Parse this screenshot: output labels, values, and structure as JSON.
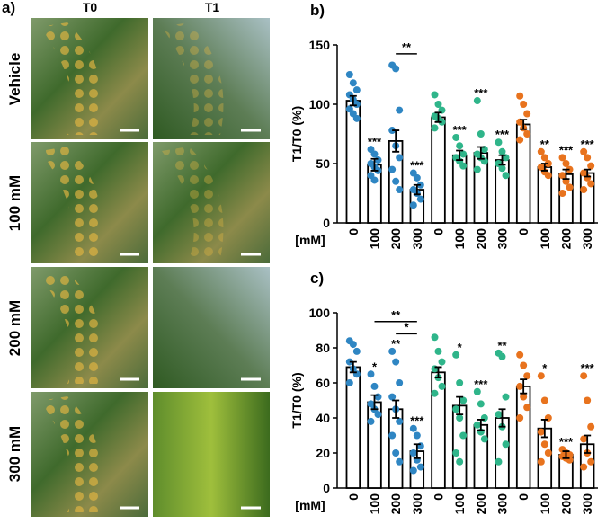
{
  "panel_a": {
    "label": "a)",
    "columns": [
      "T0",
      "T1"
    ],
    "rows": [
      "Vehicle",
      "100 mM",
      "200 mM",
      "300 mM"
    ]
  },
  "chart_data": [
    {
      "type": "bar",
      "panel": "b)",
      "ylabel": "T1/T0 (%)",
      "xlabel": "[mM]",
      "categories": [
        "0",
        "100",
        "200",
        "300"
      ],
      "ylim": [
        0,
        150
      ],
      "yticks": [
        0,
        50,
        100,
        150
      ],
      "groups": [
        {
          "color": "#2f86c3",
          "values": [
            103,
            49,
            69,
            28
          ],
          "errors": [
            4,
            5,
            9,
            4
          ],
          "points": [
            [
              125,
              118,
              112,
              108,
              104,
              100,
              96,
              92,
              88
            ],
            [
              62,
              58,
              53,
              50,
              47,
              44,
              40,
              36
            ],
            [
              133,
              130,
              95,
              78,
              65,
              55,
              45,
              35,
              28
            ],
            [
              42,
              38,
              32,
              28,
              25,
              20,
              15
            ]
          ],
          "stars": [
            null,
            "***",
            null,
            "***"
          ]
        },
        {
          "color": "#2fb58a",
          "values": [
            89,
            57,
            59,
            53
          ],
          "errors": [
            4,
            4,
            5,
            4
          ],
          "points": [
            [
              108,
              100,
              95,
              90,
              88,
              85,
              80
            ],
            [
              72,
              65,
              58,
              55,
              52,
              48
            ],
            [
              103,
              75,
              62,
              58,
              55,
              52,
              45
            ],
            [
              68,
              60,
              55,
              50,
              46,
              40
            ]
          ],
          "stars": [
            null,
            "***",
            "***",
            "***"
          ]
        },
        {
          "color": "#e8731e",
          "values": [
            83,
            47,
            41,
            42
          ],
          "errors": [
            4,
            3,
            4,
            3
          ],
          "points": [
            [
              107,
              100,
              92,
              85,
              80,
              75,
              70
            ],
            [
              60,
              55,
              50,
              47,
              43,
              40
            ],
            [
              55,
              50,
              45,
              40,
              35,
              30,
              25
            ],
            [
              60,
              55,
              48,
              42,
              38,
              33,
              28
            ]
          ],
          "stars": [
            null,
            "**",
            "***",
            "***"
          ]
        }
      ],
      "brackets": [
        {
          "group": 0,
          "span": [
            2,
            3
          ],
          "label": "**"
        }
      ]
    },
    {
      "type": "bar",
      "panel": "c)",
      "ylabel": "T1/T0 (%)",
      "xlabel": "[mM]",
      "categories": [
        "0",
        "100",
        "200",
        "300"
      ],
      "ylim": [
        0,
        100
      ],
      "yticks": [
        0,
        20,
        40,
        60,
        80,
        100
      ],
      "groups": [
        {
          "color": "#2f86c3",
          "values": [
            69,
            49,
            45,
            21
          ],
          "errors": [
            3,
            4,
            5,
            4
          ],
          "points": [
            [
              84,
              82,
              78,
              72,
              68,
              65,
              60
            ],
            [
              65,
              58,
              52,
              48,
              45,
              42,
              38
            ],
            [
              78,
              72,
              60,
              52,
              45,
              38,
              30,
              20,
              15
            ],
            [
              34,
              30,
              24,
              20,
              16,
              12,
              10
            ]
          ],
          "stars": [
            null,
            "*",
            "**",
            "***"
          ]
        },
        {
          "color": "#2fb58a",
          "values": [
            66,
            47,
            36,
            40
          ],
          "errors": [
            3,
            5,
            3,
            5
          ],
          "points": [
            [
              86,
              78,
              72,
              68,
              63,
              58,
              54
            ],
            [
              76,
              60,
              50,
              45,
              40,
              30,
              20,
              15
            ],
            [
              55,
              48,
              40,
              36,
              32,
              28
            ],
            [
              77,
              75,
              52,
              42,
              35,
              25,
              15
            ]
          ],
          "stars": [
            null,
            "*",
            "***",
            "**"
          ]
        },
        {
          "color": "#e8731e",
          "values": [
            58,
            34,
            19,
            25
          ],
          "errors": [
            4,
            5,
            2,
            5
          ],
          "points": [
            [
              76,
              70,
              64,
              58,
              52,
              46,
              40
            ],
            [
              64,
              50,
              40,
              32,
              25,
              20,
              15
            ],
            [
              22,
              20,
              19,
              18,
              17,
              16
            ],
            [
              64,
              50,
              35,
              28,
              20,
              15,
              12
            ]
          ],
          "stars": [
            null,
            "*",
            "***",
            "***"
          ]
        }
      ],
      "brackets": [
        {
          "group": 0,
          "span": [
            1,
            3
          ],
          "label": "**"
        },
        {
          "group": 0,
          "span": [
            2,
            3
          ],
          "label": "*"
        }
      ]
    }
  ]
}
